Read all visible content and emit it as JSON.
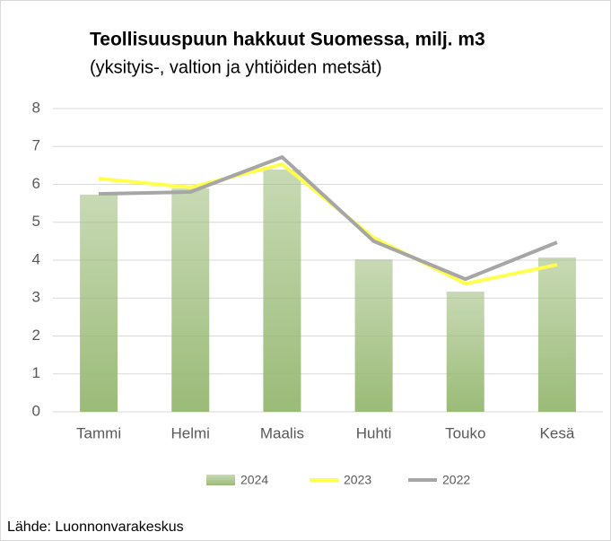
{
  "chart_data": {
    "type": "bar",
    "title": "Teollisuuspuun hakkuut Suomessa, milj. m3",
    "subtitle": "(yksityis-, valtion ja yhtiöiden metsät)",
    "source": "Lähde: Luonnonvarakeskus",
    "categories": [
      "Tammi",
      "Helmi",
      "Maalis",
      "Huhti",
      "Touko",
      "Kesä"
    ],
    "series": [
      {
        "name": "2024",
        "type": "bar",
        "color": "#9bbb78",
        "values": [
          5.73,
          5.89,
          6.39,
          4.02,
          3.17,
          4.07
        ]
      },
      {
        "name": "2023",
        "type": "line",
        "color": "#ffff4d",
        "values": [
          6.15,
          5.92,
          6.53,
          4.59,
          3.38,
          3.88
        ]
      },
      {
        "name": "2022",
        "type": "line",
        "color": "#a6a6a6",
        "values": [
          5.75,
          5.8,
          6.72,
          4.5,
          3.5,
          4.47
        ]
      }
    ],
    "ylim": [
      0,
      8
    ],
    "yticks": [
      0,
      1,
      2,
      3,
      4,
      5,
      6,
      7,
      8
    ],
    "grid": true,
    "legend": "bottom"
  }
}
